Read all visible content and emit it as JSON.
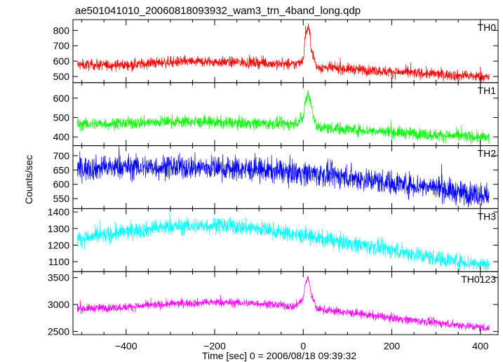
{
  "chart_data": {
    "type": "line",
    "title": "ae501041010_20060818093932_wam3_trn_4band_long.qdp",
    "xlabel": "Time [sec] 0 = 2006/08/18 09:39:32",
    "ylabel": "Counts/sec",
    "xlim": [
      -520,
      440
    ],
    "xticks": [
      -400,
      -200,
      0,
      200,
      400
    ],
    "xtick_labels": [
      "−400",
      "−200",
      "0",
      "200",
      "400"
    ],
    "data_x_range": [
      -510,
      420
    ],
    "panels": [
      {
        "name": "TH0",
        "color": "#ff0000",
        "ylim": [
          460,
          870
        ],
        "yticks": [
          500,
          600,
          700,
          800
        ],
        "ytick_labels": [
          "500",
          "600",
          "700",
          "800"
        ],
        "trend_x": [
          -510,
          -400,
          -300,
          -200,
          -100,
          -20,
          0,
          5,
          12,
          18,
          30,
          100,
          200,
          300,
          420
        ],
        "trend_y": [
          575,
          575,
          595,
          595,
          590,
          575,
          610,
          770,
          830,
          690,
          560,
          550,
          530,
          515,
          495
        ],
        "noise_amplitude": 25
      },
      {
        "name": "TH1",
        "color": "#00ff00",
        "ylim": [
          355,
          680
        ],
        "yticks": [
          400,
          500,
          600
        ],
        "ytick_labels": [
          "400",
          "500",
          "600"
        ],
        "trend_x": [
          -510,
          -400,
          -300,
          -200,
          -100,
          -20,
          0,
          5,
          12,
          18,
          30,
          100,
          200,
          300,
          420
        ],
        "trend_y": [
          465,
          470,
          480,
          475,
          470,
          465,
          500,
          590,
          630,
          560,
          450,
          440,
          425,
          410,
          395
        ],
        "noise_amplitude": 22
      },
      {
        "name": "TH2",
        "color": "#0000ff",
        "ylim": [
          515,
          735
        ],
        "yticks": [
          550,
          600,
          650,
          700
        ],
        "ytick_labels": [
          "550",
          "600",
          "650",
          "700"
        ],
        "trend_x": [
          -510,
          -400,
          -300,
          -200,
          -100,
          0,
          100,
          200,
          300,
          350,
          420
        ],
        "trend_y": [
          655,
          660,
          660,
          658,
          650,
          640,
          625,
          605,
          590,
          570,
          565
        ],
        "noise_amplitude": 30
      },
      {
        "name": "TH3",
        "color": "#00ffff",
        "ylim": [
          1040,
          1420
        ],
        "yticks": [
          1100,
          1200,
          1300,
          1400
        ],
        "ytick_labels": [
          "1100",
          "1200",
          "1300",
          "1400"
        ],
        "trend_x": [
          -510,
          -400,
          -300,
          -200,
          -100,
          0,
          100,
          200,
          300,
          420
        ],
        "trend_y": [
          1235,
          1280,
          1310,
          1320,
          1300,
          1255,
          1215,
          1170,
          1120,
          1080
        ],
        "noise_amplitude": 35
      },
      {
        "name": "TH0123",
        "color": "#ff00ff",
        "ylim": [
          2440,
          3610
        ],
        "yticks": [
          2500,
          3000,
          3500
        ],
        "ytick_labels": [
          "2500",
          "3000",
          "3500"
        ],
        "trend_x": [
          -510,
          -400,
          -300,
          -200,
          -100,
          -20,
          0,
          5,
          12,
          18,
          30,
          100,
          200,
          300,
          420
        ],
        "trend_y": [
          2920,
          2950,
          3010,
          3040,
          3020,
          2960,
          3100,
          3400,
          3500,
          3200,
          2920,
          2850,
          2750,
          2660,
          2560
        ],
        "noise_amplitude": 55
      }
    ]
  }
}
